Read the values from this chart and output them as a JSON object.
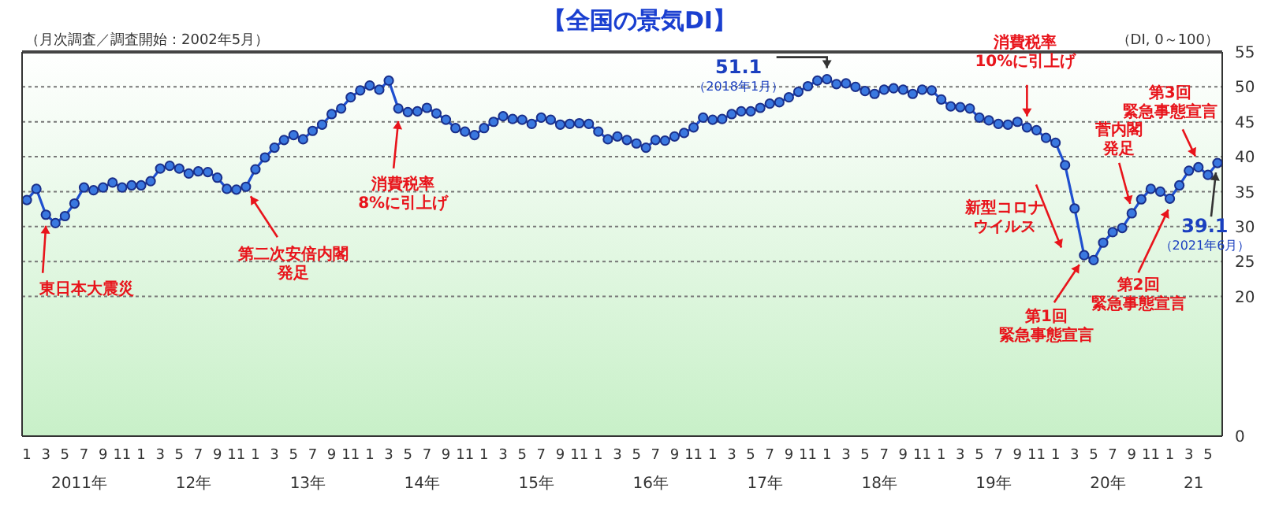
{
  "chart_data": {
    "type": "line",
    "title": "【全国の景気DI】",
    "ylabel": "（DI, 0～100）",
    "x": [
      "2011-01",
      "2011-02",
      "2011-03",
      "2011-04",
      "2011-05",
      "2011-06",
      "2011-07",
      "2011-08",
      "2011-09",
      "2011-10",
      "2011-11",
      "2011-12",
      "2012-01",
      "2012-02",
      "2012-03",
      "2012-04",
      "2012-05",
      "2012-06",
      "2012-07",
      "2012-08",
      "2012-09",
      "2012-10",
      "2012-11",
      "2012-12",
      "2013-01",
      "2013-02",
      "2013-03",
      "2013-04",
      "2013-05",
      "2013-06",
      "2013-07",
      "2013-08",
      "2013-09",
      "2013-10",
      "2013-11",
      "2013-12",
      "2014-01",
      "2014-02",
      "2014-03",
      "2014-04",
      "2014-05",
      "2014-06",
      "2014-07",
      "2014-08",
      "2014-09",
      "2014-10",
      "2014-11",
      "2014-12",
      "2015-01",
      "2015-02",
      "2015-03",
      "2015-04",
      "2015-05",
      "2015-06",
      "2015-07",
      "2015-08",
      "2015-09",
      "2015-10",
      "2015-11",
      "2015-12",
      "2016-01",
      "2016-02",
      "2016-03",
      "2016-04",
      "2016-05",
      "2016-06",
      "2016-07",
      "2016-08",
      "2016-09",
      "2016-10",
      "2016-11",
      "2016-12",
      "2017-01",
      "2017-02",
      "2017-03",
      "2017-04",
      "2017-05",
      "2017-06",
      "2017-07",
      "2017-08",
      "2017-09",
      "2017-10",
      "2017-11",
      "2017-12",
      "2018-01",
      "2018-02",
      "2018-03",
      "2018-04",
      "2018-05",
      "2018-06",
      "2018-07",
      "2018-08",
      "2018-09",
      "2018-10",
      "2018-11",
      "2018-12",
      "2019-01",
      "2019-02",
      "2019-03",
      "2019-04",
      "2019-05",
      "2019-06",
      "2019-07",
      "2019-08",
      "2019-09",
      "2019-10",
      "2019-11",
      "2019-12",
      "2020-01",
      "2020-02",
      "2020-03",
      "2020-04",
      "2020-05",
      "2020-06",
      "2020-07",
      "2020-08",
      "2020-09",
      "2020-10",
      "2020-11",
      "2020-12",
      "2021-01",
      "2021-02",
      "2021-03",
      "2021-04",
      "2021-05",
      "2021-06"
    ],
    "series": [
      {
        "color": "#1f4fcf",
        "values": [
          33.8,
          35.4,
          31.7,
          30.5,
          31.5,
          33.3,
          35.6,
          35.2,
          35.6,
          36.3,
          35.6,
          35.9,
          35.9,
          36.5,
          38.3,
          38.7,
          38.3,
          37.6,
          37.9,
          37.8,
          37.0,
          35.4,
          35.3,
          35.7,
          38.2,
          39.9,
          41.3,
          42.4,
          43.1,
          42.5,
          43.7,
          44.6,
          46.1,
          46.9,
          48.5,
          49.5,
          50.2,
          49.6,
          50.9,
          46.9,
          46.4,
          46.5,
          47.0,
          46.2,
          45.3,
          44.1,
          43.6,
          43.1,
          44.1,
          45.0,
          45.8,
          45.4,
          45.3,
          44.7,
          45.6,
          45.3,
          44.6,
          44.7,
          44.8,
          44.7,
          43.6,
          42.5,
          42.9,
          42.4,
          41.9,
          41.3,
          42.4,
          42.3,
          42.9,
          43.4,
          44.2,
          45.6,
          45.3,
          45.4,
          46.1,
          46.5,
          46.5,
          47.0,
          47.6,
          47.8,
          48.5,
          49.3,
          50.1,
          50.9,
          51.1,
          50.4,
          50.5,
          50.0,
          49.4,
          49.0,
          49.6,
          49.8,
          49.6,
          49.0,
          49.6,
          49.5,
          48.2,
          47.2,
          47.1,
          46.9,
          45.6,
          45.2,
          44.7,
          44.6,
          45.0,
          44.2,
          43.8,
          42.7,
          42.0,
          38.8,
          32.6,
          25.9,
          25.2,
          27.7,
          29.2,
          29.8,
          31.9,
          33.9,
          35.4,
          35.0,
          34.0,
          35.9,
          38.0,
          38.5,
          37.4,
          39.1
        ]
      }
    ],
    "xlim": [
      "2010-12-16",
      "2021-06-16"
    ],
    "xticks": [
      {
        "value": "2011-01",
        "label": "1"
      },
      {
        "value": "2011-03",
        "label": "3"
      },
      {
        "value": "2011-05",
        "label": "5"
      },
      {
        "value": "2011-07",
        "label": "7"
      },
      {
        "value": "2011-09",
        "label": "9"
      },
      {
        "value": "2011-11",
        "label": "11"
      },
      {
        "value": "2012-01",
        "label": "1"
      },
      {
        "value": "2012-03",
        "label": "3"
      },
      {
        "value": "2012-05",
        "label": "5"
      },
      {
        "value": "2012-07",
        "label": "7"
      },
      {
        "value": "2012-09",
        "label": "9"
      },
      {
        "value": "2012-11",
        "label": "11"
      },
      {
        "value": "2013-01",
        "label": "1"
      },
      {
        "value": "2013-03",
        "label": "3"
      },
      {
        "value": "2013-05",
        "label": "5"
      },
      {
        "value": "2013-07",
        "label": "7"
      },
      {
        "value": "2013-09",
        "label": "9"
      },
      {
        "value": "2013-11",
        "label": "11"
      },
      {
        "value": "2014-01",
        "label": "1"
      },
      {
        "value": "2014-03",
        "label": "3"
      },
      {
        "value": "2014-05",
        "label": "5"
      },
      {
        "value": "2014-07",
        "label": "7"
      },
      {
        "value": "2014-09",
        "label": "9"
      },
      {
        "value": "2014-11",
        "label": "11"
      },
      {
        "value": "2015-01",
        "label": "1"
      },
      {
        "value": "2015-03",
        "label": "3"
      },
      {
        "value": "2015-05",
        "label": "5"
      },
      {
        "value": "2015-07",
        "label": "7"
      },
      {
        "value": "2015-09",
        "label": "9"
      },
      {
        "value": "2015-11",
        "label": "11"
      },
      {
        "value": "2016-01",
        "label": "1"
      },
      {
        "value": "2016-03",
        "label": "3"
      },
      {
        "value": "2016-05",
        "label": "5"
      },
      {
        "value": "2016-07",
        "label": "7"
      },
      {
        "value": "2016-09",
        "label": "9"
      },
      {
        "value": "2016-11",
        "label": "11"
      },
      {
        "value": "2017-01",
        "label": "1"
      },
      {
        "value": "2017-03",
        "label": "3"
      },
      {
        "value": "2017-05",
        "label": "5"
      },
      {
        "value": "2017-07",
        "label": "7"
      },
      {
        "value": "2017-09",
        "label": "9"
      },
      {
        "value": "2017-11",
        "label": "11"
      },
      {
        "value": "2018-01",
        "label": "1"
      },
      {
        "value": "2018-03",
        "label": "3"
      },
      {
        "value": "2018-05",
        "label": "5"
      },
      {
        "value": "2018-07",
        "label": "7"
      },
      {
        "value": "2018-09",
        "label": "9"
      },
      {
        "value": "2018-11",
        "label": "11"
      },
      {
        "value": "2019-01",
        "label": "1"
      },
      {
        "value": "2019-03",
        "label": "3"
      },
      {
        "value": "2019-05",
        "label": "5"
      },
      {
        "value": "2019-07",
        "label": "7"
      },
      {
        "value": "2019-09",
        "label": "9"
      },
      {
        "value": "2019-11",
        "label": "11"
      },
      {
        "value": "2020-01",
        "label": "1"
      },
      {
        "value": "2020-03",
        "label": "3"
      },
      {
        "value": "2020-05",
        "label": "5"
      },
      {
        "value": "2020-07",
        "label": "7"
      },
      {
        "value": "2020-09",
        "label": "9"
      },
      {
        "value": "2020-11",
        "label": "11"
      },
      {
        "value": "2021-01",
        "label": "1"
      },
      {
        "value": "2021-03",
        "label": "3"
      },
      {
        "value": "2021-05",
        "label": "5"
      }
    ],
    "ylim": [
      0,
      55
    ],
    "yticks": [
      0,
      20,
      25,
      30,
      35,
      40,
      45,
      50,
      55
    ],
    "grid": "y",
    "marker": "circle",
    "line_style": "solid",
    "annotations": [
      "（月次調査／調査開始：2002年5月）",
      "新型コロナウイルス",
      "2011年",
      "12年",
      "13年",
      "14年",
      "15年",
      "16年",
      "17年",
      "18年",
      "19年",
      "20年",
      "21",
      {
        "text": "東日本大震災",
        "x": "2011-03",
        "y": 31.7
      },
      {
        "text": "第二次安倍内閣発足",
        "x": "2012-12",
        "y": 35.7
      },
      {
        "text": "消費税率8%に引上げ",
        "x": "2014-04",
        "y": 46.9
      },
      {
        "text": "51.1（2018年1月）",
        "x": "2018-01",
        "y": 51.1
      },
      {
        "text": "消費税率10%に引上げ",
        "x": "2019-10",
        "y": 44.2
      },
      {
        "text": "第1回緊急事態宣言",
        "x": "2020-04",
        "y": 25.9
      },
      {
        "text": "菅内閣発足",
        "x": "2020-09",
        "y": 31.9
      },
      {
        "text": "第2回緊急事態宣言",
        "x": "2021-01",
        "y": 34.0
      },
      {
        "text": "第3回緊急事態宣言",
        "x": "2021-04",
        "y": 38.5
      },
      {
        "text": "39.1（2021年6月）",
        "x": "2021-06",
        "y": 39.1
      }
    ]
  }
}
